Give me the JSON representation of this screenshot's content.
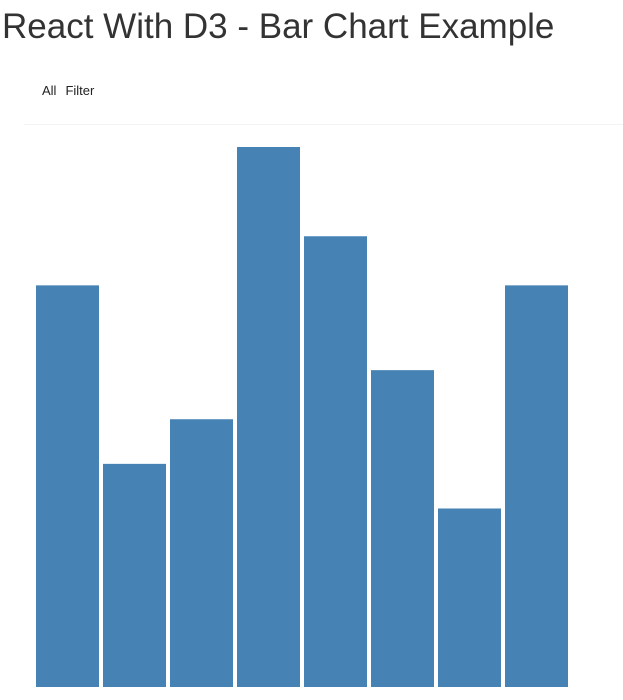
{
  "page": {
    "title": "React With D3 - Bar Chart Example"
  },
  "controls": {
    "all_label": "All",
    "filter_label": "Filter"
  },
  "chart_data": {
    "type": "bar",
    "bar_color": "#4682b4",
    "values": [
      90,
      50,
      60,
      121,
      101,
      71,
      40,
      90
    ],
    "ylim": [
      0,
      121
    ],
    "title": "",
    "xlabel": "",
    "ylabel": ""
  }
}
